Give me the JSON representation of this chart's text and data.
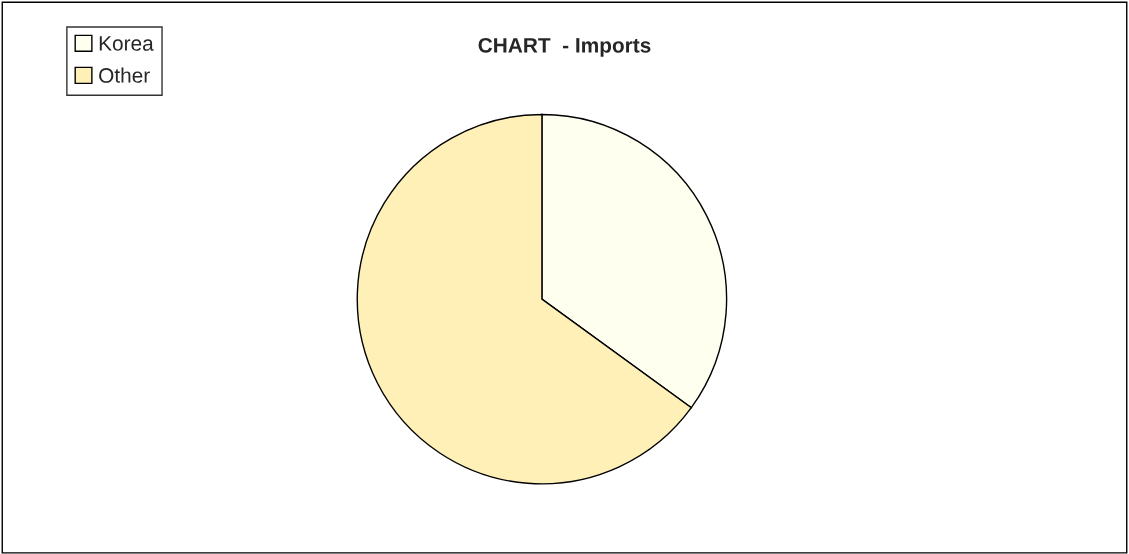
{
  "chart_data": {
    "type": "pie",
    "title": "CHART  - Imports",
    "categories": [
      "Korea",
      "Other"
    ],
    "values": [
      35,
      65
    ],
    "colors": [
      "#fffff0",
      "#fff0b8"
    ],
    "legend": "top left"
  }
}
